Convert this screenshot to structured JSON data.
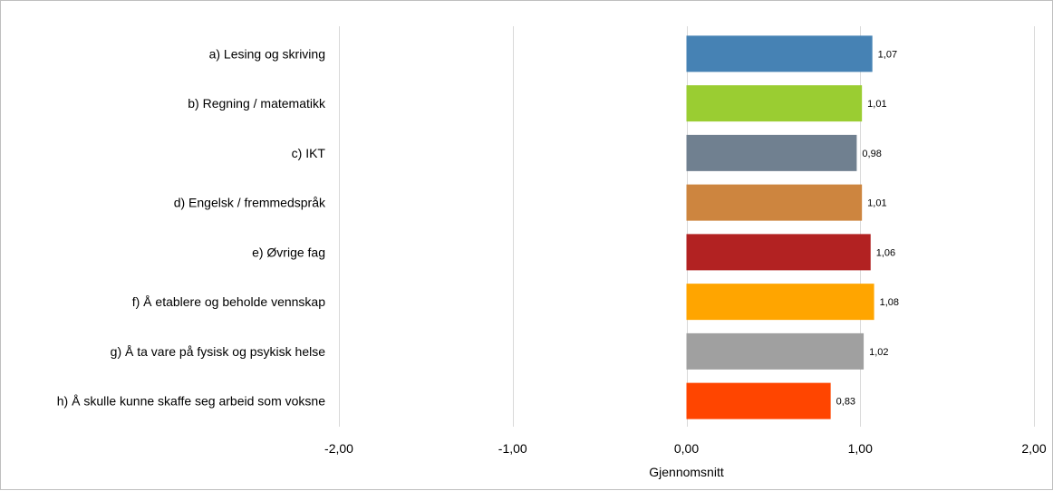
{
  "chart_data": {
    "type": "bar",
    "orientation": "horizontal",
    "categories": [
      "a) Lesing og skriving",
      "b) Regning / matematikk",
      "c) IKT",
      "d) Engelsk / fremmedspråk",
      "e) Øvrige fag",
      "f) Å etablere og beholde vennskap",
      "g) Å ta vare på fysisk og psykisk helse",
      "h) Å skulle kunne skaffe seg arbeid som voksne"
    ],
    "values": [
      1.07,
      1.01,
      0.98,
      1.01,
      1.06,
      1.08,
      1.02,
      0.83
    ],
    "value_labels": [
      "1,07",
      "1,01",
      "0,98",
      "1,01",
      "1,06",
      "1,08",
      "1,02",
      "0,83"
    ],
    "colors": [
      "#4682b4",
      "#9acd32",
      "#708090",
      "#cd853f",
      "#b22222",
      "#ffa500",
      "#a0a0a0",
      "#ff4500"
    ],
    "xlim": [
      -2,
      2
    ],
    "xticks": [
      -2,
      -1,
      0,
      1,
      2
    ],
    "xtick_labels": [
      "-2,00",
      "-1,00",
      "0,00",
      "1,00",
      "2,00"
    ],
    "xlabel": "Gjennomsnitt",
    "ylabel": "",
    "title": "",
    "grid": "vertical",
    "legend": "none"
  }
}
